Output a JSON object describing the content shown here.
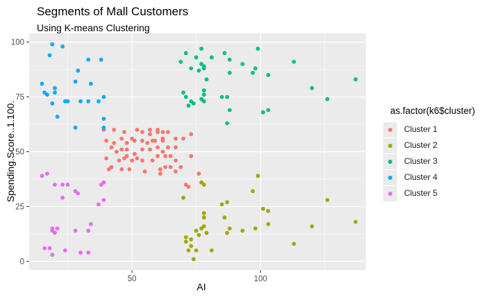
{
  "chart_data": {
    "type": "scatter",
    "title": "Segments of Mall Customers",
    "subtitle": "Using K-means Clustering",
    "xlabel": "AI",
    "ylabel": "Spending.Score..1.100.",
    "xlim": [
      10,
      141
    ],
    "ylim": [
      -4,
      104
    ],
    "x_ticks": [
      50,
      100
    ],
    "y_ticks": [
      0,
      25,
      50,
      75,
      100
    ],
    "legend_title": "as.factor(k6$cluster)",
    "legend_position": "right",
    "series": [
      {
        "name": "Cluster 1",
        "color": "#F8766D",
        "points": [
          [
            39,
            60
          ],
          [
            40,
            55
          ],
          [
            40,
            47
          ],
          [
            41,
            42
          ],
          [
            42,
            52
          ],
          [
            42,
            43
          ],
          [
            43,
            60
          ],
          [
            43,
            54
          ],
          [
            44,
            50
          ],
          [
            45,
            46
          ],
          [
            46,
            51
          ],
          [
            46,
            56
          ],
          [
            46,
            42
          ],
          [
            47,
            59
          ],
          [
            47,
            47
          ],
          [
            48,
            51
          ],
          [
            48,
            54
          ],
          [
            48,
            48
          ],
          [
            49,
            42
          ],
          [
            50,
            46
          ],
          [
            50,
            56
          ],
          [
            51,
            55
          ],
          [
            51,
            49
          ],
          [
            52,
            47
          ],
          [
            52,
            60
          ],
          [
            54,
            59
          ],
          [
            54,
            55
          ],
          [
            54,
            46
          ],
          [
            54,
            51
          ],
          [
            55,
            41
          ],
          [
            56,
            54
          ],
          [
            57,
            60
          ],
          [
            57,
            58
          ],
          [
            57,
            51
          ],
          [
            58,
            46
          ],
          [
            58,
            55
          ],
          [
            59,
            55
          ],
          [
            60,
            48
          ],
          [
            60,
            52
          ],
          [
            60,
            59
          ],
          [
            60,
            60
          ],
          [
            61,
            40
          ],
          [
            61,
            42
          ],
          [
            62,
            59
          ],
          [
            62,
            55
          ],
          [
            62,
            50
          ],
          [
            62,
            56
          ],
          [
            63,
            43
          ],
          [
            63,
            48
          ],
          [
            64,
            52
          ],
          [
            64,
            59
          ],
          [
            65,
            43
          ],
          [
            65,
            48
          ],
          [
            67,
            56
          ],
          [
            67,
            41
          ],
          [
            67,
            52
          ],
          [
            67,
            46
          ],
          [
            69,
            43
          ],
          [
            70,
            56
          ],
          [
            71,
            35
          ],
          [
            72,
            34
          ],
          [
            76,
            40
          ],
          [
            73,
            48
          ],
          [
            73,
            58
          ]
        ]
      },
      {
        "name": "Cluster 2",
        "color": "#A3A500",
        "points": [
          [
            70,
            29
          ],
          [
            71,
            11
          ],
          [
            71,
            9
          ],
          [
            72,
            5
          ],
          [
            73,
            7
          ],
          [
            73,
            10
          ],
          [
            74,
            1
          ],
          [
            75,
            5
          ],
          [
            75,
            14
          ],
          [
            76,
            12
          ],
          [
            77,
            15
          ],
          [
            77,
            36
          ],
          [
            78,
            22
          ],
          [
            78,
            20
          ],
          [
            78,
            16
          ],
          [
            78,
            35
          ],
          [
            79,
            13
          ],
          [
            81,
            5
          ],
          [
            85,
            26
          ],
          [
            86,
            20
          ],
          [
            87,
            27
          ],
          [
            87,
            13
          ],
          [
            88,
            15
          ],
          [
            93,
            14
          ],
          [
            97,
            32
          ],
          [
            98,
            15
          ],
          [
            99,
            39
          ],
          [
            101,
            24
          ],
          [
            103,
            17
          ],
          [
            103,
            23
          ],
          [
            113,
            8
          ],
          [
            120,
            16
          ],
          [
            126,
            28
          ],
          [
            137,
            18
          ]
        ]
      },
      {
        "name": "Cluster 3",
        "color": "#00BF7D",
        "points": [
          [
            69,
            91
          ],
          [
            70,
            77
          ],
          [
            71,
            95
          ],
          [
            71,
            75
          ],
          [
            72,
            71
          ],
          [
            73,
            88
          ],
          [
            73,
            73
          ],
          [
            74,
            72
          ],
          [
            75,
            93
          ],
          [
            76,
            87
          ],
          [
            77,
            97
          ],
          [
            77,
            74
          ],
          [
            77,
            90
          ],
          [
            78,
            76
          ],
          [
            78,
            89
          ],
          [
            78,
            78
          ],
          [
            78,
            88
          ],
          [
            78,
            73
          ],
          [
            79,
            83
          ],
          [
            81,
            93
          ],
          [
            85,
            75
          ],
          [
            86,
            95
          ],
          [
            87,
            63
          ],
          [
            87,
            75
          ],
          [
            88,
            92
          ],
          [
            88,
            86
          ],
          [
            88,
            69
          ],
          [
            93,
            90
          ],
          [
            97,
            86
          ],
          [
            98,
            88
          ],
          [
            99,
            97
          ],
          [
            101,
            68
          ],
          [
            103,
            85
          ],
          [
            103,
            69
          ],
          [
            113,
            91
          ],
          [
            120,
            79
          ],
          [
            126,
            74
          ],
          [
            137,
            83
          ]
        ]
      },
      {
        "name": "Cluster 4",
        "color": "#00A9FF",
        "points": [
          [
            15,
            81
          ],
          [
            16,
            77
          ],
          [
            17,
            76
          ],
          [
            18,
            94
          ],
          [
            19,
            72
          ],
          [
            19,
            99
          ],
          [
            20,
            77
          ],
          [
            20,
            79
          ],
          [
            21,
            66
          ],
          [
            23,
            98
          ],
          [
            24,
            73
          ],
          [
            25,
            73
          ],
          [
            28,
            82
          ],
          [
            28,
            61
          ],
          [
            29,
            87
          ],
          [
            30,
            73
          ],
          [
            33,
            73
          ],
          [
            33,
            92
          ],
          [
            34,
            81
          ],
          [
            37,
            73
          ],
          [
            38,
            92
          ],
          [
            39,
            75
          ],
          [
            39,
            65
          ],
          [
            39,
            61
          ]
        ]
      },
      {
        "name": "Cluster 5",
        "color": "#E76BF3",
        "points": [
          [
            15,
            39
          ],
          [
            16,
            6
          ],
          [
            17,
            40
          ],
          [
            18,
            6
          ],
          [
            19,
            3
          ],
          [
            19,
            14
          ],
          [
            19,
            15
          ],
          [
            20,
            13
          ],
          [
            20,
            35
          ],
          [
            21,
            15
          ],
          [
            23,
            29
          ],
          [
            23,
            35
          ],
          [
            24,
            5
          ],
          [
            25,
            35
          ],
          [
            28,
            14
          ],
          [
            28,
            32
          ],
          [
            29,
            31
          ],
          [
            30,
            4
          ],
          [
            33,
            4
          ],
          [
            33,
            14
          ],
          [
            34,
            17
          ],
          [
            37,
            26
          ],
          [
            38,
            35
          ],
          [
            39,
            28
          ],
          [
            39,
            36
          ]
        ]
      }
    ]
  }
}
